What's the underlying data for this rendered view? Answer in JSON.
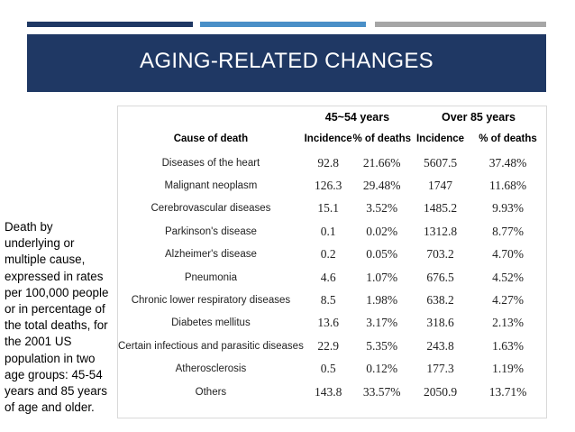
{
  "slide": {
    "title": "AGING-RELATED CHANGES",
    "side_text": "Death by underlying or multiple cause, expressed in rates per 100,000 people or in percentage of the total deaths, for the 2001 US population in two age groups: 45-54 years and 85 years of age and older."
  },
  "table": {
    "group_headers": {
      "young": "45~54 years",
      "old": "Over 85 years"
    },
    "columns": {
      "cause": "Cause of death",
      "incidence_young": "Incidence",
      "pct_young": "% of deaths",
      "incidence_old": "Incidence",
      "pct_old": "% of deaths"
    },
    "rows": [
      {
        "cause": "Diseases of the heart",
        "inc_young": "92.8",
        "pct_young": "21.66%",
        "inc_old": "5607.5",
        "pct_old": "37.48%"
      },
      {
        "cause": "Malignant neoplasm",
        "inc_young": "126.3",
        "pct_young": "29.48%",
        "inc_old": "1747",
        "pct_old": "11.68%"
      },
      {
        "cause": "Cerebrovascular diseases",
        "inc_young": "15.1",
        "pct_young": "3.52%",
        "inc_old": "1485.2",
        "pct_old": "9.93%"
      },
      {
        "cause": "Parkinson's disease",
        "inc_young": "0.1",
        "pct_young": "0.02%",
        "inc_old": "1312.8",
        "pct_old": "8.77%"
      },
      {
        "cause": "Alzheimer's disease",
        "inc_young": "0.2",
        "pct_young": "0.05%",
        "inc_old": "703.2",
        "pct_old": "4.70%"
      },
      {
        "cause": "Pneumonia",
        "inc_young": "4.6",
        "pct_young": "1.07%",
        "inc_old": "676.5",
        "pct_old": "4.52%"
      },
      {
        "cause": "Chronic lower respiratory diseases",
        "inc_young": "8.5",
        "pct_young": "1.98%",
        "inc_old": "638.2",
        "pct_old": "4.27%"
      },
      {
        "cause": "Diabetes mellitus",
        "inc_young": "13.6",
        "pct_young": "3.17%",
        "inc_old": "318.6",
        "pct_old": "2.13%"
      },
      {
        "cause": "Certain infectious and parasitic diseases",
        "inc_young": "22.9",
        "pct_young": "5.35%",
        "inc_old": "243.8",
        "pct_old": "1.63%"
      },
      {
        "cause": "Atherosclerosis",
        "inc_young": "0.5",
        "pct_young": "0.12%",
        "inc_old": "177.3",
        "pct_old": "1.19%"
      },
      {
        "cause": "Others",
        "inc_young": "143.8",
        "pct_young": "33.57%",
        "inc_old": "2050.9",
        "pct_old": "13.71%"
      }
    ]
  }
}
